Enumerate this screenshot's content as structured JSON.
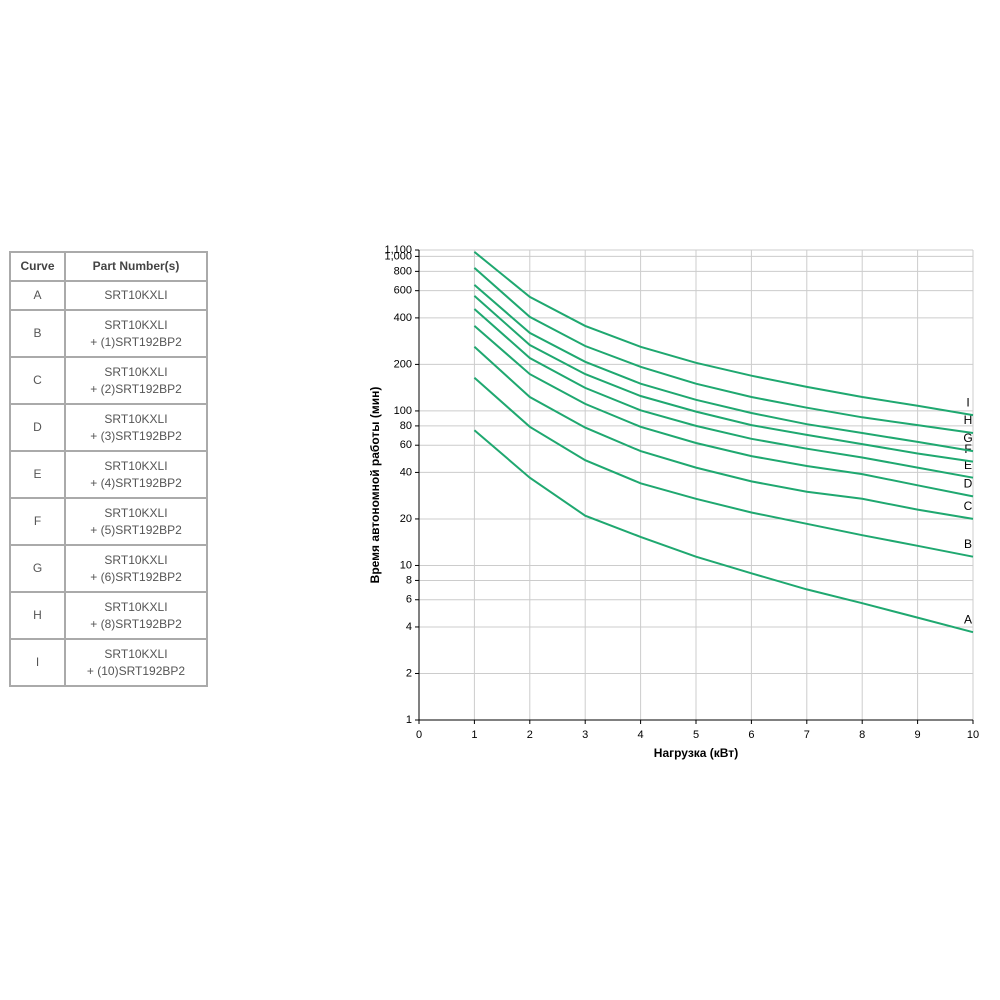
{
  "table": {
    "header": [
      "Curve",
      "Part Number(s)"
    ],
    "rows": [
      {
        "curve": "A",
        "parts": [
          "SRT10KXLI"
        ]
      },
      {
        "curve": "B",
        "parts": [
          "SRT10KXLI",
          "+ (1)SRT192BP2"
        ]
      },
      {
        "curve": "C",
        "parts": [
          "SRT10KXLI",
          "+ (2)SRT192BP2"
        ]
      },
      {
        "curve": "D",
        "parts": [
          "SRT10KXLI",
          "+ (3)SRT192BP2"
        ]
      },
      {
        "curve": "E",
        "parts": [
          "SRT10KXLI",
          "+ (4)SRT192BP2"
        ]
      },
      {
        "curve": "F",
        "parts": [
          "SRT10KXLI",
          "+ (5)SRT192BP2"
        ]
      },
      {
        "curve": "G",
        "parts": [
          "SRT10KXLI",
          "+ (6)SRT192BP2"
        ]
      },
      {
        "curve": "H",
        "parts": [
          "SRT10KXLI",
          "+ (8)SRT192BP2"
        ]
      },
      {
        "curve": "I",
        "parts": [
          "SRT10KXLI",
          "+ (10)SRT192BP2"
        ]
      }
    ]
  },
  "chart_data": {
    "type": "line",
    "x_label": "Нагрузка (кВт)",
    "y_label": "Время автономной работы (мин)",
    "x": [
      1,
      2,
      3,
      4,
      5,
      6,
      7,
      8,
      9,
      10
    ],
    "series": [
      {
        "name": "A",
        "color": "#1fa870",
        "values": [
          75,
          37,
          21,
          15.3,
          11.4,
          8.9,
          7.0,
          5.7,
          4.6,
          3.7
        ]
      },
      {
        "name": "B",
        "color": "#1fa870",
        "values": [
          164,
          79,
          48,
          34,
          27,
          22,
          18.6,
          15.7,
          13.4,
          11.4
        ]
      },
      {
        "name": "C",
        "color": "#1fa870",
        "values": [
          260,
          123,
          78,
          55,
          43,
          35,
          30,
          27,
          23,
          20
        ]
      },
      {
        "name": "D",
        "color": "#1fa870",
        "values": [
          355,
          173,
          111,
          79,
          62,
          51,
          44,
          39,
          33,
          28
        ]
      },
      {
        "name": "E",
        "color": "#1fa870",
        "values": [
          457,
          220,
          141,
          101,
          80,
          66,
          57,
          50,
          43,
          37
        ]
      },
      {
        "name": "F",
        "color": "#1fa870",
        "values": [
          555,
          267,
          173,
          125,
          99,
          81,
          70,
          61,
          53,
          47
        ]
      },
      {
        "name": "G",
        "color": "#1fa870",
        "values": [
          654,
          320,
          208,
          150,
          118,
          97,
          82,
          72,
          63,
          55
        ]
      },
      {
        "name": "H",
        "color": "#1fa870",
        "values": [
          843,
          406,
          263,
          193,
          150,
          123,
          105,
          91,
          81,
          72
        ]
      },
      {
        "name": "I",
        "color": "#1fa870",
        "values": [
          1070,
          547,
          355,
          260,
          205,
          169,
          143,
          123,
          108,
          94
        ]
      }
    ],
    "xlim": [
      0,
      10
    ],
    "xticks": [
      0,
      1,
      2,
      3,
      4,
      5,
      6,
      7,
      8,
      9,
      10
    ],
    "ylim": [
      1,
      1100
    ],
    "y_log": true,
    "yticks": [
      1,
      2,
      4,
      6,
      8,
      10,
      20,
      40,
      60,
      80,
      100,
      200,
      400,
      600,
      800,
      {
        "value": 1000,
        "label": "1,000"
      },
      {
        "value": 1100,
        "label": "1,100"
      }
    ],
    "grid": true
  }
}
